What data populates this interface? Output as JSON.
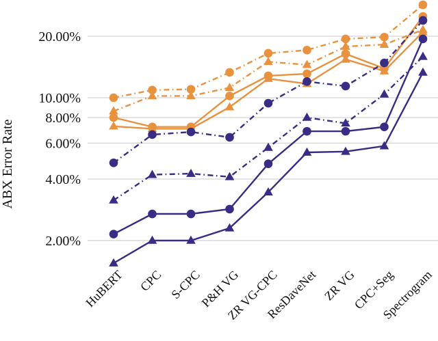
{
  "figure": {
    "ylabel": "ABX Error Rate"
  },
  "colors": {
    "orange": "#E8913F",
    "navy": "#382C85",
    "grid": "#C9C9C9",
    "text": "#111111"
  },
  "chart_data": {
    "type": "line",
    "title": "",
    "xlabel": "",
    "ylabel": "ABX Error Rate",
    "y_scale": "log",
    "ylim": [
      1.4,
      30
    ],
    "grid": true,
    "legend": "none",
    "categories": [
      "HuBERT",
      "CPC",
      "S-CPC",
      "P&H VG",
      "ZR VG-CPC",
      "ResDaveNet",
      "ZR VG",
      "CPC+Seg",
      "Spectrogram"
    ],
    "y_ticks": [
      {
        "value": 20,
        "label": "20.00%"
      },
      {
        "value": 10,
        "label": "10.00%"
      },
      {
        "value": 8,
        "label": "8.00%"
      },
      {
        "value": 6,
        "label": "6.00%"
      },
      {
        "value": 4,
        "label": "4.00%"
      },
      {
        "value": 2,
        "label": "2.00%"
      }
    ],
    "series": [
      {
        "name": "orange-dashdot-circle",
        "color": "#E8913F",
        "linestyle": "dashdot",
        "marker": "circle",
        "values": [
          10.0,
          10.9,
          11.0,
          13.3,
          16.5,
          17.1,
          19.4,
          19.8,
          28.5
        ]
      },
      {
        "name": "orange-dashdot-triangle",
        "color": "#E8913F",
        "linestyle": "dashdot",
        "marker": "triangle",
        "values": [
          8.6,
          10.2,
          10.2,
          11.2,
          15.0,
          14.5,
          17.8,
          18.2,
          21.5
        ]
      },
      {
        "name": "orange-solid-circle",
        "color": "#E8913F",
        "linestyle": "solid",
        "marker": "circle",
        "values": [
          8.0,
          7.2,
          7.2,
          10.2,
          12.8,
          13.1,
          16.4,
          13.9,
          25.0
        ]
      },
      {
        "name": "orange-solid-triangle",
        "color": "#E8913F",
        "linestyle": "solid",
        "marker": "triangle",
        "values": [
          7.25,
          7.05,
          7.05,
          9.0,
          12.4,
          11.7,
          15.4,
          13.5,
          21.0
        ]
      },
      {
        "name": "navy-dashdot-circle",
        "color": "#382C85",
        "linestyle": "dashdot",
        "marker": "circle",
        "values": [
          4.8,
          6.6,
          6.8,
          6.4,
          9.4,
          12.0,
          11.4,
          14.8,
          23.9
        ]
      },
      {
        "name": "navy-dashdot-triangle",
        "color": "#382C85",
        "linestyle": "dashdot",
        "marker": "triangle",
        "values": [
          3.15,
          4.2,
          4.25,
          4.1,
          5.7,
          8.0,
          7.5,
          10.4,
          15.9
        ]
      },
      {
        "name": "navy-solid-circle",
        "color": "#382C85",
        "linestyle": "solid",
        "marker": "circle",
        "values": [
          2.15,
          2.7,
          2.7,
          2.85,
          4.75,
          6.85,
          6.85,
          7.2,
          19.4
        ]
      },
      {
        "name": "navy-solid-triangle",
        "color": "#382C85",
        "linestyle": "solid",
        "marker": "triangle",
        "values": [
          1.55,
          2.0,
          2.0,
          2.3,
          3.45,
          5.4,
          5.45,
          5.8,
          13.3
        ]
      }
    ]
  }
}
